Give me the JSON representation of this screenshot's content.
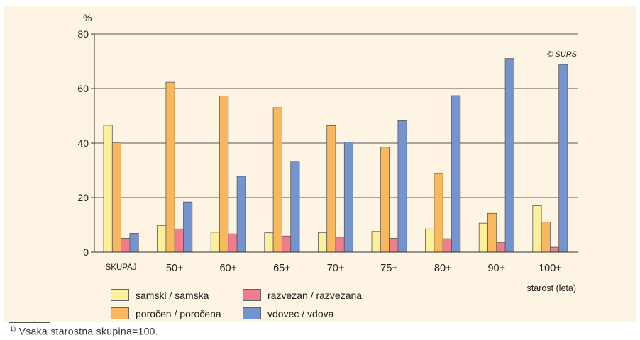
{
  "chart_data": {
    "type": "bar",
    "title": "",
    "ylabel": "%",
    "xlabel": "starost (leta)",
    "ylim": [
      0,
      80
    ],
    "yticks": [
      0,
      20,
      40,
      60,
      80
    ],
    "grid": true,
    "copyright": "© SURS",
    "categories": [
      "SKUPAJ",
      "50+",
      "60+",
      "65+",
      "70+",
      "75+",
      "80+",
      "90+",
      "100+"
    ],
    "series": [
      {
        "name": "samski / samska",
        "color": "#fdf09c",
        "values": [
          46.5,
          9.8,
          7.3,
          7.1,
          7.2,
          7.6,
          8.5,
          10.6,
          17.0
        ]
      },
      {
        "name": "poročen / poročena",
        "color": "#f9b85d",
        "values": [
          40.2,
          62.3,
          57.3,
          53.0,
          46.4,
          38.5,
          28.9,
          14.2,
          11.0
        ]
      },
      {
        "name": "razvezan / razvezana",
        "color": "#f07c8c",
        "values": [
          5.1,
          8.5,
          6.7,
          5.9,
          5.5,
          5.1,
          4.9,
          3.6,
          1.8
        ]
      },
      {
        "name": "vdovec / vdova",
        "color": "#7394cf",
        "values": [
          6.9,
          18.4,
          27.8,
          33.3,
          40.4,
          48.2,
          57.4,
          71.0,
          68.8
        ]
      }
    ]
  },
  "legend": {
    "items": [
      {
        "label": "samski / samska",
        "color": "#fdf09c"
      },
      {
        "label": "razvezan / razvezana",
        "color": "#f07c8c"
      },
      {
        "label": "poročen / poročena",
        "color": "#f9b85d"
      },
      {
        "label": "vdovec / vdova",
        "color": "#7394cf"
      }
    ]
  },
  "footnote": {
    "marker": "1)",
    "text": "Vsaka starostna skupina=100."
  }
}
